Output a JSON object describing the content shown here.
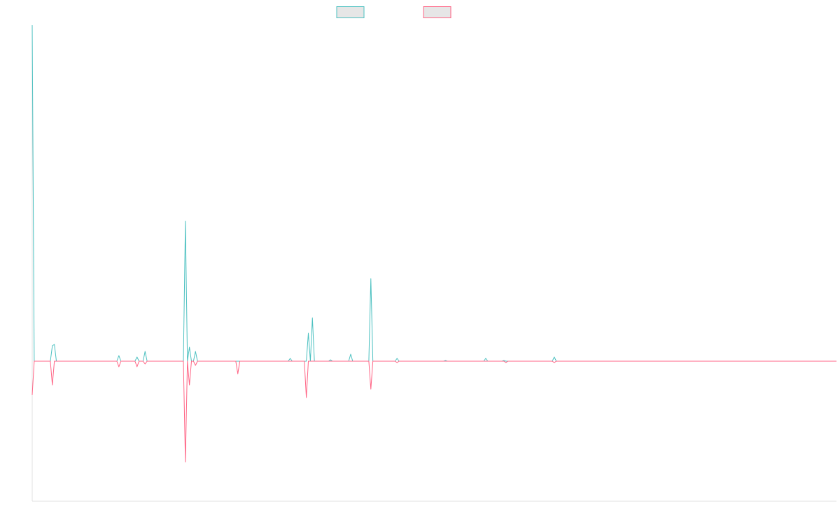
{
  "chart_data": {
    "type": "line",
    "title": "",
    "xlabel": "",
    "ylabel": "",
    "x_count": 400,
    "ylim": [
      -100,
      240
    ],
    "grid": false,
    "legend": "top-center",
    "series": [
      {
        "color": "#4bc0c0",
        "fill": "#e6e6e6",
        "points": [
          [
            0,
            240
          ],
          [
            1,
            0
          ],
          [
            9,
            0
          ],
          [
            10,
            11
          ],
          [
            11,
            12
          ],
          [
            12,
            0
          ],
          [
            42,
            0
          ],
          [
            43,
            4
          ],
          [
            44,
            0
          ],
          [
            51,
            0
          ],
          [
            52,
            3
          ],
          [
            53,
            0
          ],
          [
            54,
            0
          ],
          [
            55,
            0
          ],
          [
            56,
            7
          ],
          [
            57,
            0
          ],
          [
            75,
            0
          ],
          [
            76,
            100
          ],
          [
            77,
            0
          ],
          [
            78,
            10
          ],
          [
            79,
            0
          ],
          [
            80,
            0
          ],
          [
            81,
            7
          ],
          [
            82,
            0
          ],
          [
            127,
            0
          ],
          [
            128,
            2
          ],
          [
            129,
            0
          ],
          [
            136,
            0
          ],
          [
            137,
            20
          ],
          [
            138,
            0
          ],
          [
            139,
            31
          ],
          [
            140,
            0
          ],
          [
            147,
            0
          ],
          [
            148,
            1
          ],
          [
            149,
            0
          ],
          [
            157,
            0
          ],
          [
            158,
            5
          ],
          [
            159,
            0
          ],
          [
            167,
            0
          ],
          [
            168,
            59
          ],
          [
            169,
            0
          ],
          [
            180,
            0
          ],
          [
            181,
            2
          ],
          [
            182,
            0
          ],
          [
            204,
            0
          ],
          [
            205,
            0.5
          ],
          [
            206,
            0
          ],
          [
            224,
            0
          ],
          [
            225,
            2
          ],
          [
            226,
            0
          ],
          [
            233,
            0
          ],
          [
            234,
            0.5
          ],
          [
            235,
            0
          ],
          [
            258,
            0
          ],
          [
            259,
            3
          ],
          [
            260,
            0
          ],
          [
            399,
            0
          ]
        ]
      },
      {
        "color": "#ff6384",
        "fill": "#e6e6e6",
        "points": [
          [
            0,
            -24
          ],
          [
            1,
            0
          ],
          [
            9,
            0
          ],
          [
            10,
            -17
          ],
          [
            11,
            0
          ],
          [
            42,
            0
          ],
          [
            43,
            -4
          ],
          [
            44,
            0
          ],
          [
            51,
            0
          ],
          [
            52,
            -4
          ],
          [
            53,
            0
          ],
          [
            55,
            0
          ],
          [
            56,
            -2
          ],
          [
            57,
            0
          ],
          [
            75,
            0
          ],
          [
            76,
            -72
          ],
          [
            77,
            0
          ],
          [
            78,
            -17
          ],
          [
            79,
            0
          ],
          [
            80,
            0
          ],
          [
            81,
            -3
          ],
          [
            82,
            0
          ],
          [
            101,
            0
          ],
          [
            102,
            -9
          ],
          [
            103,
            0
          ],
          [
            135,
            0
          ],
          [
            136,
            -26
          ],
          [
            137,
            0
          ],
          [
            167,
            0
          ],
          [
            168,
            -20
          ],
          [
            169,
            0
          ],
          [
            180,
            0
          ],
          [
            181,
            -1
          ],
          [
            182,
            0
          ],
          [
            234,
            0
          ],
          [
            235,
            -1
          ],
          [
            236,
            0
          ],
          [
            258,
            0
          ],
          [
            259,
            -1
          ],
          [
            260,
            0
          ],
          [
            399,
            0
          ]
        ]
      }
    ]
  }
}
